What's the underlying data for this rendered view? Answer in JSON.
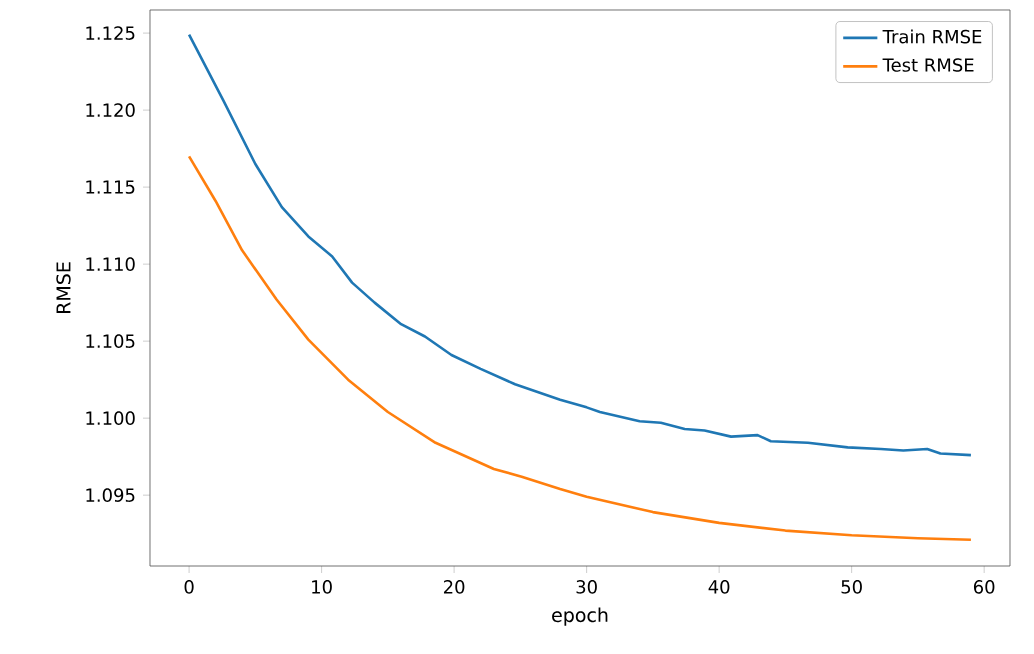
{
  "chart_data": {
    "type": "line",
    "xlabel": "epoch",
    "ylabel": "RMSE",
    "xlim": [
      -2.95,
      61.95
    ],
    "ylim": [
      1.0904,
      1.1265
    ],
    "xticks": [
      0,
      10,
      20,
      30,
      40,
      50,
      60
    ],
    "yticks": [
      1.095,
      {
        "value": 1.1,
        "label": "1.100"
      },
      1.105,
      {
        "value": 1.11,
        "label": "1.110"
      },
      1.115,
      {
        "value": 1.12,
        "label": "1.120"
      },
      1.125
    ],
    "legend": "top right",
    "grid": false,
    "marker": "none",
    "line_style": "solid",
    "series": [
      {
        "name": "Train RMSE",
        "color": "#1f77b4",
        "x": [
          0,
          2.6,
          5,
          7,
          9,
          10.8,
          12.3,
          14,
          16,
          17.8,
          19.8,
          22,
          24.6,
          28,
          30,
          31,
          34,
          35.6,
          37.4,
          38.9,
          40.9,
          42.9,
          43.9,
          46.7,
          49.7,
          52.2,
          53.9,
          55.7,
          56.7,
          59
        ],
        "values": [
          1.1249,
          1.1206,
          1.1165,
          1.1137,
          1.1118,
          1.1105,
          1.1088,
          1.1075,
          1.1061,
          1.1053,
          1.1041,
          1.1032,
          1.1022,
          1.1012,
          1.1007,
          1.1004,
          1.0998,
          1.0997,
          1.0993,
          1.0992,
          1.0988,
          1.0989,
          1.0985,
          1.0984,
          1.0981,
          1.098,
          1.0979,
          1.098,
          1.0977,
          1.0976
        ]
      },
      {
        "name": "Test RMSE",
        "color": "#ff7f0e",
        "x": [
          0,
          2,
          4,
          6.6,
          9,
          12,
          15,
          18.6,
          23,
          25.1,
          28,
          30,
          35,
          40,
          45,
          50,
          55,
          59
        ],
        "values": [
          1.117,
          1.1141,
          1.1109,
          1.1077,
          1.1051,
          1.1025,
          1.1004,
          1.0984,
          1.0967,
          1.0962,
          1.0954,
          1.0949,
          1.0939,
          1.0932,
          1.0927,
          1.0924,
          1.0922,
          1.0921
        ]
      }
    ]
  }
}
